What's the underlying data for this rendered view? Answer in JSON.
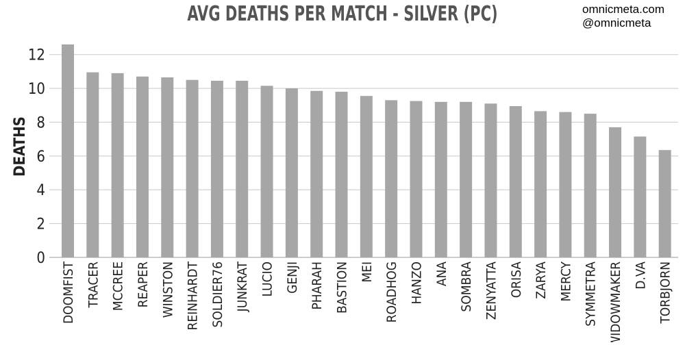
{
  "watermark": {
    "site": "omnicmeta.com",
    "handle": "@omnicmeta"
  },
  "chart_data": {
    "type": "bar",
    "title": "AVG DEATHS PER MATCH - SILVER (PC)",
    "xlabel": "",
    "ylabel": "DEATHS",
    "ylim": [
      0,
      13
    ],
    "yticks": [
      0,
      2,
      4,
      6,
      8,
      10,
      12
    ],
    "grid": true,
    "bar_color": "#a6a6a6",
    "grid_color": "#c8c8c8",
    "categories": [
      "DOOMFIST",
      "TRACER",
      "MCCREE",
      "REAPER",
      "WINSTON",
      "REINHARDT",
      "SOLDIER76",
      "JUNKRAT",
      "LUCIO",
      "GENJI",
      "PHARAH",
      "BASTION",
      "MEI",
      "ROADHOG",
      "HANZO",
      "ANA",
      "SOMBRA",
      "ZENYATTA",
      "ORISA",
      "ZARYA",
      "MERCY",
      "SYMMETRA",
      "WIDOWMAKER",
      "D.VA",
      "TORBJORN"
    ],
    "values": [
      12.6,
      10.95,
      10.9,
      10.7,
      10.65,
      10.5,
      10.45,
      10.45,
      10.15,
      10.0,
      9.85,
      9.8,
      9.55,
      9.3,
      9.25,
      9.2,
      9.2,
      9.1,
      8.95,
      8.65,
      8.6,
      8.5,
      7.7,
      7.15,
      6.35
    ]
  }
}
